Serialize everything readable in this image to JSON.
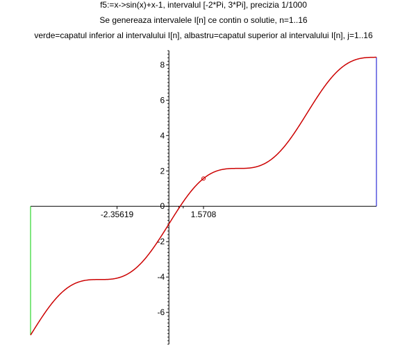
{
  "title_lines": [
    "f5:=x->sin(x)+x-1, intervalul [-2*Pi, 3*Pi], precizia 1/1000",
    "Se genereaza intervalele I[n] ce contin o solutie, n=1..16",
    "verde=capatul inferior al intervalului I[n], albastru=capatul superior al intervalului I[n], j=1..16"
  ],
  "colors": {
    "curve": "#cc0000",
    "lower_bound": "#00cc00",
    "upper_bound": "#0000cc",
    "axes": "#000000",
    "marker": "#cc0000"
  },
  "chart_data": {
    "type": "line",
    "function": "sin(x)+x-1",
    "xlim": [
      -6.283185,
      9.424778
    ],
    "ylim": [
      -7.8,
      8.8
    ],
    "y_ticks": [
      -6,
      -4,
      -2,
      0,
      2,
      4,
      6,
      8
    ],
    "x_tick_labels": [
      {
        "value": -2.35619,
        "label": "-2.35619"
      },
      {
        "value": 1.5708,
        "label": "1.5708"
      }
    ],
    "marked_point": {
      "x": 1.5708,
      "y": 1.5708
    },
    "lower_bound_segment": {
      "x": -6.283185,
      "y_from": -7.283185,
      "y_to": 0
    },
    "upper_bound_segment": {
      "x": 9.424778,
      "y_from": 0,
      "y_to": 8.424778
    },
    "grid": false,
    "legend": "none"
  }
}
